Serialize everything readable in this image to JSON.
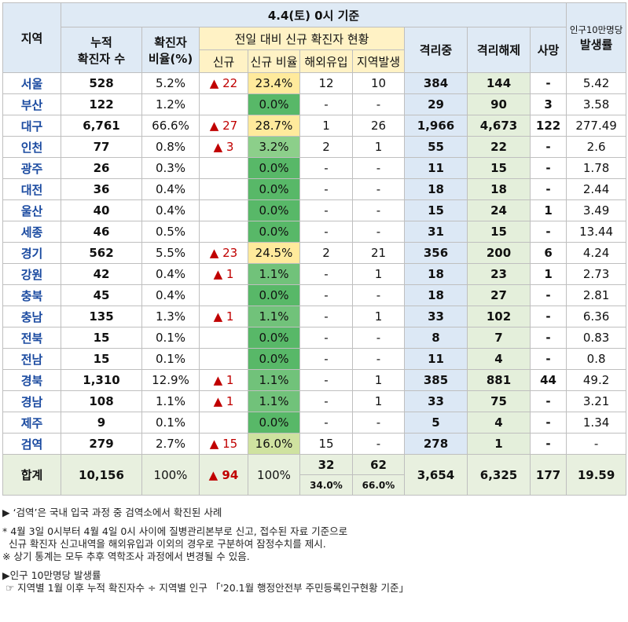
{
  "header": {
    "region": "지역",
    "date_title": "4.4(토) 0시 기준",
    "cumulative": [
      "누적",
      "확진자 수"
    ],
    "ratio": [
      "확진자",
      "비율(%)"
    ],
    "new_group": "전일 대비 신규 확진자 현황",
    "new": "신규",
    "new_ratio": "신규 비율",
    "overseas": "해외유입",
    "local": "지역발생",
    "isolating": "격리중",
    "released": "격리해제",
    "deaths": "사망",
    "per100k_top": "인구10만명당",
    "per100k": "발생률"
  },
  "rows": [
    {
      "region": "서울",
      "cum": "528",
      "ratio": "5.2%",
      "new": "▲ 22",
      "new_ratio": "23.4%",
      "overseas": "12",
      "local": "10",
      "iso": "384",
      "rel": "144",
      "death": "-",
      "rate": "5.42"
    },
    {
      "region": "부산",
      "cum": "122",
      "ratio": "1.2%",
      "new": "",
      "new_ratio": "0.0%",
      "overseas": "-",
      "local": "-",
      "iso": "29",
      "rel": "90",
      "death": "3",
      "rate": "3.58"
    },
    {
      "region": "대구",
      "cum": "6,761",
      "ratio": "66.6%",
      "new": "▲ 27",
      "new_ratio": "28.7%",
      "overseas": "1",
      "local": "26",
      "iso": "1,966",
      "rel": "4,673",
      "death": "122",
      "rate": "277.49"
    },
    {
      "region": "인천",
      "cum": "77",
      "ratio": "0.8%",
      "new": "▲ 3",
      "new_ratio": "3.2%",
      "overseas": "2",
      "local": "1",
      "iso": "55",
      "rel": "22",
      "death": "-",
      "rate": "2.6"
    },
    {
      "region": "광주",
      "cum": "26",
      "ratio": "0.3%",
      "new": "",
      "new_ratio": "0.0%",
      "overseas": "-",
      "local": "-",
      "iso": "11",
      "rel": "15",
      "death": "-",
      "rate": "1.78"
    },
    {
      "region": "대전",
      "cum": "36",
      "ratio": "0.4%",
      "new": "",
      "new_ratio": "0.0%",
      "overseas": "-",
      "local": "-",
      "iso": "18",
      "rel": "18",
      "death": "-",
      "rate": "2.44"
    },
    {
      "region": "울산",
      "cum": "40",
      "ratio": "0.4%",
      "new": "",
      "new_ratio": "0.0%",
      "overseas": "-",
      "local": "-",
      "iso": "15",
      "rel": "24",
      "death": "1",
      "rate": "3.49"
    },
    {
      "region": "세종",
      "cum": "46",
      "ratio": "0.5%",
      "new": "",
      "new_ratio": "0.0%",
      "overseas": "-",
      "local": "-",
      "iso": "31",
      "rel": "15",
      "death": "-",
      "rate": "13.44"
    },
    {
      "region": "경기",
      "cum": "562",
      "ratio": "5.5%",
      "new": "▲ 23",
      "new_ratio": "24.5%",
      "overseas": "2",
      "local": "21",
      "iso": "356",
      "rel": "200",
      "death": "6",
      "rate": "4.24"
    },
    {
      "region": "강원",
      "cum": "42",
      "ratio": "0.4%",
      "new": "▲ 1",
      "new_ratio": "1.1%",
      "overseas": "-",
      "local": "1",
      "iso": "18",
      "rel": "23",
      "death": "1",
      "rate": "2.73"
    },
    {
      "region": "충북",
      "cum": "45",
      "ratio": "0.4%",
      "new": "",
      "new_ratio": "0.0%",
      "overseas": "-",
      "local": "-",
      "iso": "18",
      "rel": "27",
      "death": "-",
      "rate": "2.81"
    },
    {
      "region": "충남",
      "cum": "135",
      "ratio": "1.3%",
      "new": "▲ 1",
      "new_ratio": "1.1%",
      "overseas": "-",
      "local": "1",
      "iso": "33",
      "rel": "102",
      "death": "-",
      "rate": "6.36"
    },
    {
      "region": "전북",
      "cum": "15",
      "ratio": "0.1%",
      "new": "",
      "new_ratio": "0.0%",
      "overseas": "-",
      "local": "-",
      "iso": "8",
      "rel": "7",
      "death": "-",
      "rate": "0.83"
    },
    {
      "region": "전남",
      "cum": "15",
      "ratio": "0.1%",
      "new": "",
      "new_ratio": "0.0%",
      "overseas": "-",
      "local": "-",
      "iso": "11",
      "rel": "4",
      "death": "-",
      "rate": "0.8"
    },
    {
      "region": "경북",
      "cum": "1,310",
      "ratio": "12.9%",
      "new": "▲ 1",
      "new_ratio": "1.1%",
      "overseas": "-",
      "local": "1",
      "iso": "385",
      "rel": "881",
      "death": "44",
      "rate": "49.2"
    },
    {
      "region": "경남",
      "cum": "108",
      "ratio": "1.1%",
      "new": "▲ 1",
      "new_ratio": "1.1%",
      "overseas": "-",
      "local": "1",
      "iso": "33",
      "rel": "75",
      "death": "-",
      "rate": "3.21"
    },
    {
      "region": "제주",
      "cum": "9",
      "ratio": "0.1%",
      "new": "",
      "new_ratio": "0.0%",
      "overseas": "-",
      "local": "-",
      "iso": "5",
      "rel": "4",
      "death": "-",
      "rate": "1.34"
    },
    {
      "region": "검역",
      "cum": "279",
      "ratio": "2.7%",
      "new": "▲ 15",
      "new_ratio": "16.0%",
      "overseas": "15",
      "local": "-",
      "iso": "278",
      "rel": "1",
      "death": "-",
      "rate": "-"
    }
  ],
  "total": {
    "label": "합계",
    "cum": "10,156",
    "ratio": "100%",
    "new": "▲ 94",
    "new_ratio": "100%",
    "overseas": "32",
    "overseas_pct": "34.0%",
    "local": "62",
    "local_pct": "66.0%",
    "iso": "3,654",
    "rel": "6,325",
    "death": "177",
    "rate": "19.59"
  },
  "notes": [
    "▶ ‘검역’은 국내 입국 과정 중 검역소에서 확진된 사례",
    "* 4월 3일 0시부터 4월 4일 0시 사이에 질병관리본부로 신고, 접수된 자료 기준으로",
    "  신규 확진자 신고내역을 해외유입과 이외의 경우로 구분하여 잠정수치를 제시.",
    "※ 상기 통계는 모두 추후 역학조사 과정에서 변경될 수 있음.",
    "▶인구 10만명당 발생률",
    " ☞ 지역별 1월 이후 누적 확진자수 ÷ 지역별 인구 「'20.1월 행정안전부 주민등록인구현황 기준」"
  ]
}
